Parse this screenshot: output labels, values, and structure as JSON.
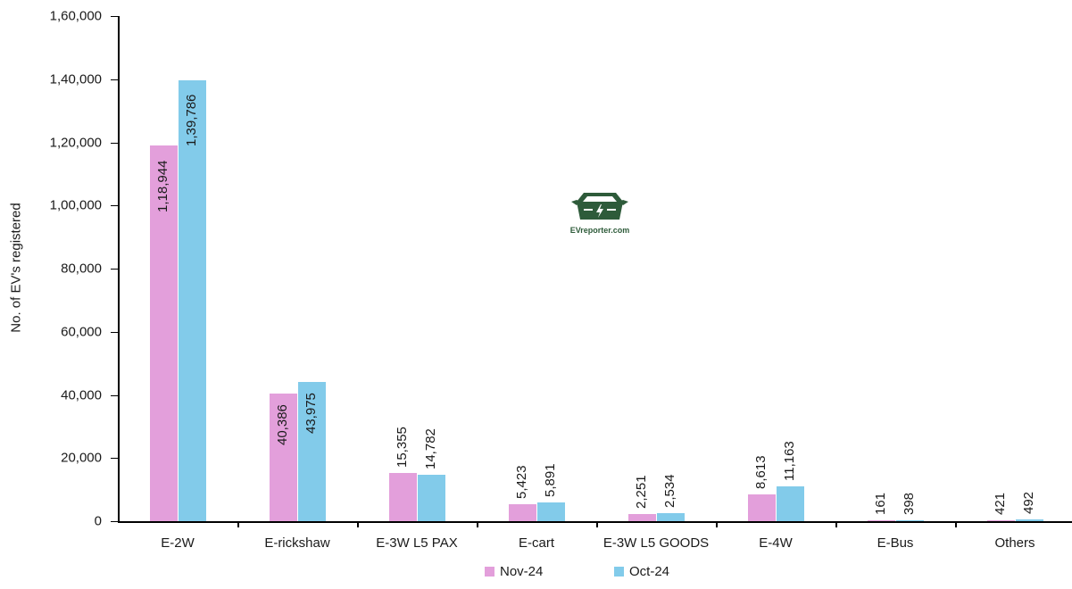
{
  "chart_data": {
    "type": "bar",
    "title": "",
    "xlabel": "",
    "ylabel": "No. of EV's registered",
    "ylim": [
      0,
      160000
    ],
    "yticks": [
      0,
      20000,
      40000,
      60000,
      80000,
      100000,
      120000,
      140000,
      160000
    ],
    "ytick_labels": [
      "0",
      "20,000",
      "40,000",
      "60,000",
      "80,000",
      "1,00,000",
      "1,20,000",
      "1,40,000",
      "1,60,000"
    ],
    "grid": false,
    "legend_position": "bottom",
    "categories": [
      "E-2W",
      "E-rickshaw",
      "E-3W L5 PAX",
      "E-cart",
      "E-3W L5 GOODS",
      "E-4W",
      "E-Bus",
      "Others"
    ],
    "series": [
      {
        "name": "Nov-24",
        "color": "#e39fdb",
        "values": [
          118944,
          40386,
          15355,
          5423,
          2251,
          8613,
          161,
          421
        ],
        "labels": [
          "1,18,944",
          "40,386",
          "15,355",
          "5,423",
          "2,251",
          "8,613",
          "161",
          "421"
        ]
      },
      {
        "name": "Oct-24",
        "color": "#82cbea",
        "values": [
          139786,
          43975,
          14782,
          5891,
          2534,
          11163,
          398,
          492
        ],
        "labels": [
          "1,39,786",
          "43,975",
          "14,782",
          "5,891",
          "2,534",
          "11,163",
          "398",
          "492"
        ]
      }
    ],
    "watermark": "EVreporter.com"
  }
}
